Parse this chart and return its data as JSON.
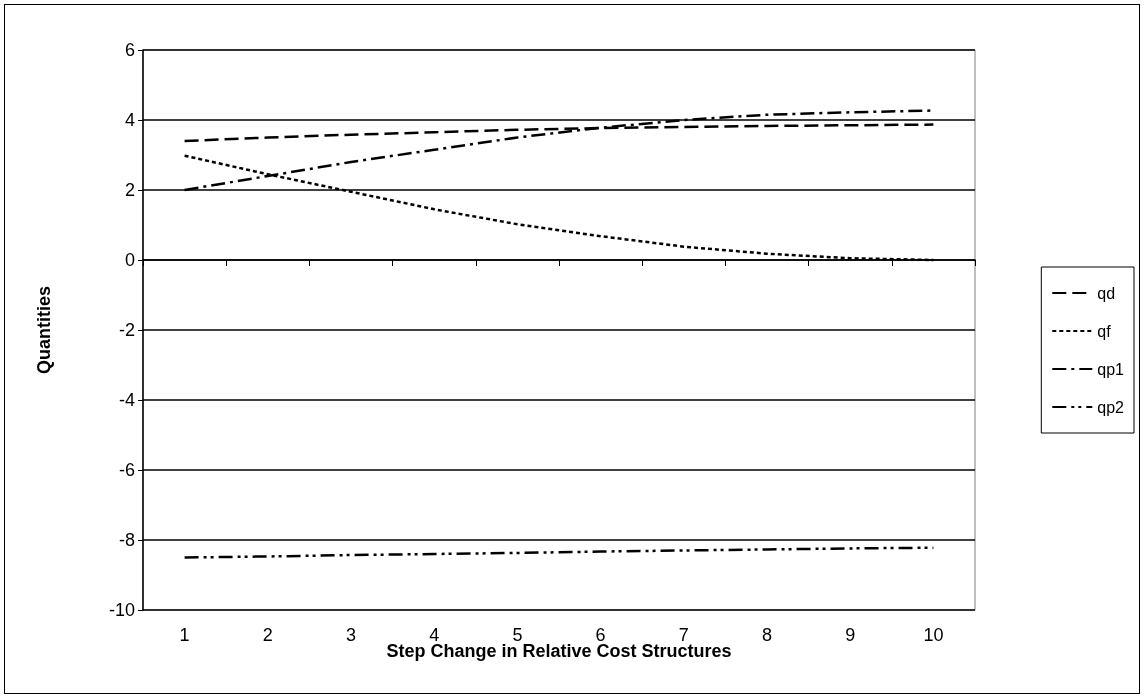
{
  "chart_data": {
    "type": "line",
    "xlabel": "Step Change in Relative Cost Structures",
    "ylabel": "Quantities",
    "categories": [
      "1",
      "2",
      "3",
      "4",
      "5",
      "6",
      "7",
      "8",
      "9",
      "10"
    ],
    "ylim": [
      -10,
      6
    ],
    "yticks": [
      -10,
      -8,
      -6,
      -4,
      -2,
      0,
      2,
      4,
      6
    ],
    "grid": "y",
    "legend": "right",
    "marker": "none",
    "series": [
      {
        "name": "qd",
        "color": "#000000",
        "line_style": "dashed",
        "values": [
          3.4,
          3.5,
          3.58,
          3.65,
          3.72,
          3.77,
          3.8,
          3.83,
          3.85,
          3.87
        ]
      },
      {
        "name": "qf",
        "color": "#000000",
        "line_style": "dotted",
        "values": [
          2.98,
          2.45,
          1.95,
          1.45,
          1.02,
          0.68,
          0.38,
          0.18,
          0.05,
          0.0
        ]
      },
      {
        "name": "qp1",
        "color": "#000000",
        "line_style": "dashdot",
        "values": [
          2.0,
          2.4,
          2.8,
          3.15,
          3.5,
          3.78,
          4.0,
          4.15,
          4.22,
          4.27
        ]
      },
      {
        "name": "qp2",
        "color": "#000000",
        "line_style": "dashdotdot",
        "values": [
          -8.5,
          -8.47,
          -8.43,
          -8.4,
          -8.37,
          -8.33,
          -8.3,
          -8.27,
          -8.24,
          -8.22
        ]
      }
    ]
  }
}
